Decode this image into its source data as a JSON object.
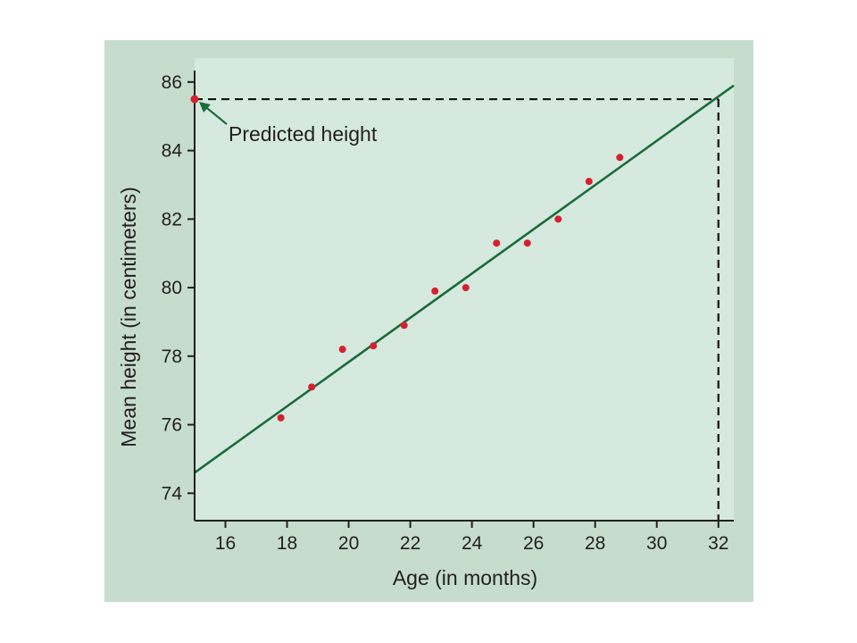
{
  "chart_data": {
    "type": "scatter",
    "xlabel": "Age (in months)",
    "ylabel": "Mean height (in centimeters)",
    "xlim": [
      15,
      32.5
    ],
    "ylim": [
      73.2,
      86.7
    ],
    "xticks": [
      16,
      18,
      20,
      22,
      24,
      26,
      28,
      30,
      32
    ],
    "yticks": [
      74,
      76,
      78,
      80,
      82,
      84,
      86
    ],
    "grid": false,
    "series": [
      {
        "x": [
          17.8,
          18.8,
          19.8,
          20.8,
          21.8,
          22.8,
          23.8,
          24.8,
          25.8,
          26.8,
          27.8,
          28.8
        ],
        "y": [
          76.2,
          77.1,
          78.2,
          78.3,
          78.9,
          79.9,
          80.0,
          81.3,
          81.3,
          82.0,
          83.1,
          83.8
        ],
        "color": "#d6202e"
      }
    ],
    "regression_line": {
      "x": [
        15,
        32.5
      ],
      "y": [
        74.6,
        85.9
      ],
      "color": "#1a6b3b"
    },
    "predicted_point": {
      "x": 15,
      "y": 85.5,
      "x_ref": 32,
      "color": "#d6202e"
    },
    "annotation": "Predicted height",
    "colors": {
      "plot_background": "#d5e9de",
      "frame_background": "#c6dccd",
      "axis": "#231f20"
    }
  }
}
